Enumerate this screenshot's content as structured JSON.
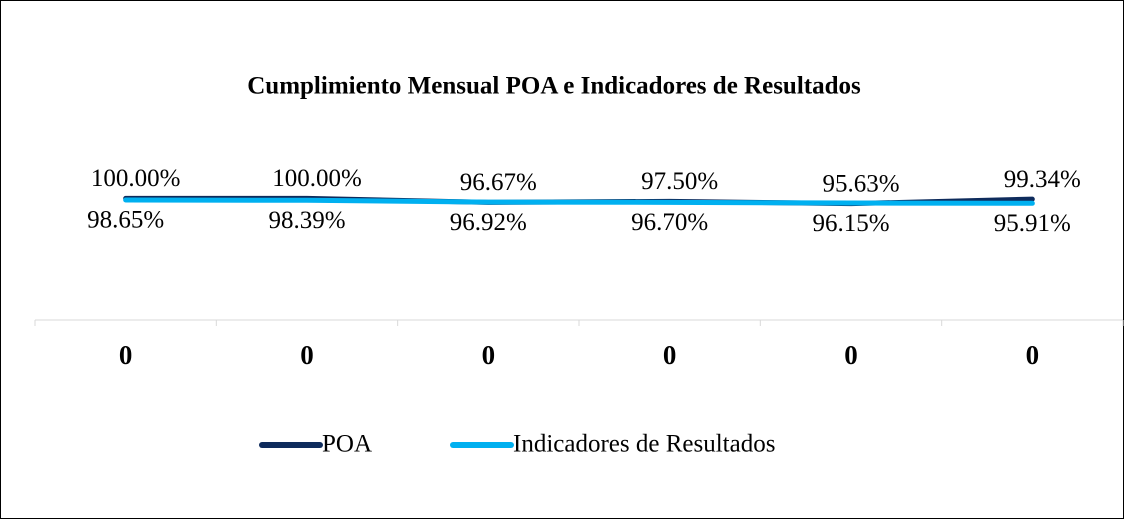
{
  "chart_data": {
    "type": "line",
    "title": "Cumplimiento Mensual POA e Indicadores de Resultados",
    "categories": [
      "0",
      "0",
      "0",
      "0",
      "0",
      "0"
    ],
    "series": [
      {
        "name": "POA",
        "color": "#0e2b5c",
        "values": [
          100,
          100,
          96.67,
          97.5,
          95.63,
          99.34
        ],
        "value_labels": [
          "100.00%",
          "100.00%",
          "96.67%",
          "97.50%",
          "95.63%",
          "99.34%"
        ]
      },
      {
        "name": "Indicadores de Resultados",
        "color": "#00b0f0",
        "values": [
          98.65,
          98.39,
          96.92,
          96.7,
          96.15,
          95.91
        ],
        "value_labels": [
          "98.65%",
          "98.39%",
          "96.92%",
          "96.70%",
          "96.15%",
          "95.91%"
        ]
      }
    ],
    "ylim": [
      0,
      120
    ]
  }
}
